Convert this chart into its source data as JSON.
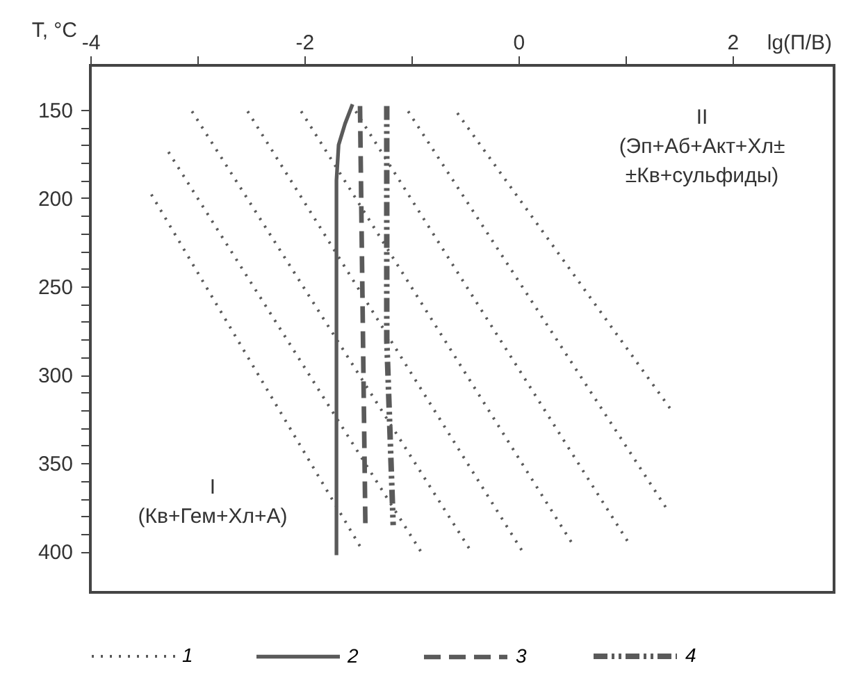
{
  "chart_data": {
    "type": "line",
    "xlabel": "lg(П/В)",
    "ylabel": "T, °C",
    "xlim": [
      -4,
      2.95
    ],
    "ylim": [
      423,
      125
    ],
    "xticks": [
      -4,
      {
        "value": -3,
        "label": null
      },
      -2,
      {
        "value": -1,
        "label": null
      },
      0,
      {
        "value": 1,
        "label": null
      },
      2
    ],
    "yticks": [
      150,
      {
        "value": 160,
        "label": null
      },
      {
        "value": 170,
        "label": null
      },
      {
        "value": 180,
        "label": null
      },
      {
        "value": 190,
        "label": null
      },
      200,
      {
        "value": 210,
        "label": null
      },
      {
        "value": 220,
        "label": null
      },
      {
        "value": 230,
        "label": null
      },
      {
        "value": 240,
        "label": null
      },
      250,
      {
        "value": 260,
        "label": null
      },
      {
        "value": 270,
        "label": null
      },
      {
        "value": 280,
        "label": null
      },
      {
        "value": 290,
        "label": null
      },
      300,
      {
        "value": 310,
        "label": null
      },
      {
        "value": 320,
        "label": null
      },
      {
        "value": 330,
        "label": null
      },
      {
        "value": 340,
        "label": null
      },
      350,
      {
        "value": 360,
        "label": null
      },
      {
        "value": 370,
        "label": null
      },
      {
        "value": 380,
        "label": null
      },
      {
        "value": 390,
        "label": null
      },
      400
    ],
    "grid": false,
    "legend": "bottom",
    "marker": "none",
    "series": [
      {
        "name": "1",
        "color": "#5a5a5a",
        "line_style": "dotted",
        "x": [
          -3.43,
          -1.45,
          null,
          -3.27,
          -0.9,
          null,
          -3.05,
          -0.43,
          null,
          -2.53,
          0.05,
          null,
          -2.03,
          0.52,
          null,
          -1.52,
          1.03,
          null,
          -1.03,
          1.4,
          null,
          -0.57,
          1.43
        ],
        "values": [
          198,
          400,
          null,
          174,
          401,
          null,
          151,
          401,
          null,
          151,
          401,
          null,
          151,
          397,
          null,
          151,
          395,
          null,
          151,
          377,
          null,
          152,
          320
        ]
      },
      {
        "name": "2",
        "color": "#5a5a5a",
        "line_style": "solid",
        "x": [
          -1.55,
          -1.62,
          -1.68,
          -1.7,
          -1.7
        ],
        "values": [
          147,
          158,
          170,
          190,
          402
        ]
      },
      {
        "name": "3",
        "color": "#5a5a5a",
        "line_style": "dashed",
        "x": [
          -1.48,
          -1.43
        ],
        "values": [
          148,
          384
        ]
      },
      {
        "name": "4",
        "color": "#5a5a5a",
        "line_style": "dashdot",
        "x": [
          -1.23,
          -1.23,
          -1.17
        ],
        "values": [
          148,
          280,
          385
        ]
      }
    ],
    "annotations": [
      "II\n(Эп+Аб+Акт+Хл±\n±Кв+сульфиды)",
      "I\n(Кв+Гем+Хл+А)"
    ]
  }
}
